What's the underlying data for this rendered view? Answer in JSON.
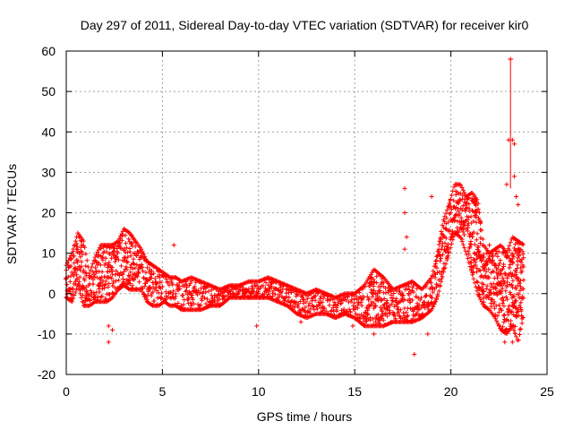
{
  "chart_data": {
    "type": "scatter",
    "title": "Day 297 of 2011, Sidereal Day-to-day VTEC variation (SDTVAR) for receiver kir0",
    "xlabel": "GPS time / hours",
    "ylabel": "SDTVAR / TECUs",
    "xlim": [
      0,
      25
    ],
    "ylim": [
      -20,
      60
    ],
    "xticks": [
      0,
      5,
      10,
      15,
      20,
      25
    ],
    "yticks": [
      -20,
      -10,
      0,
      10,
      20,
      30,
      40,
      50,
      60
    ],
    "grid": true,
    "marker": "+",
    "color": "#ff0000",
    "series": [
      {
        "name": "kir0",
        "bands": [
          {
            "x": [
              0.0,
              0.3,
              0.6,
              0.9,
              1.2,
              1.5,
              1.8,
              2.1,
              2.4,
              2.7,
              3.0,
              3.3,
              3.6,
              3.9,
              4.2,
              4.5,
              4.8,
              5.1,
              5.4,
              5.7,
              6.0,
              6.5,
              7.0,
              7.5,
              8.0,
              8.5,
              9.0,
              9.5,
              10.0,
              10.5,
              11.0,
              11.5,
              12.0,
              12.5,
              13.0,
              13.5,
              14.0,
              14.5,
              15.0,
              15.5,
              16.0,
              16.5,
              17.0,
              17.5,
              18.0,
              18.5,
              19.0,
              19.3,
              19.6,
              19.9,
              20.2,
              20.5,
              20.8,
              21.1,
              21.4,
              21.7,
              22.0,
              22.3,
              22.6,
              22.9,
              23.2,
              23.5,
              23.8
            ],
            "lo": [
              -1,
              -2,
              2,
              -3,
              -3,
              -2,
              -2,
              -2,
              -1,
              1,
              2,
              1,
              1,
              1,
              -2,
              -3,
              -3,
              -2,
              -3,
              -3,
              -4,
              -4,
              -4,
              -3,
              -3,
              -1,
              -1,
              -1,
              -1,
              -1,
              -2,
              -3,
              -5,
              -6,
              -5,
              -5,
              -6,
              -5,
              -6,
              -8,
              -8,
              -8,
              -7,
              -7,
              -7,
              -6,
              -4,
              -1,
              5,
              10,
              15,
              14,
              10,
              5,
              0,
              -3,
              -4,
              -6,
              -9,
              -10,
              -8,
              -12,
              -5
            ],
            "hi": [
              7,
              10,
              15,
              13,
              5,
              9,
              12,
              12,
              12,
              13,
              16,
              15,
              13,
              11,
              8,
              7,
              6,
              5,
              4,
              4,
              3,
              4,
              3,
              2,
              1,
              2,
              2,
              3,
              3,
              4,
              3,
              2,
              1,
              0,
              1,
              0,
              -1,
              0,
              0,
              2,
              6,
              4,
              1,
              2,
              3,
              1,
              4,
              10,
              18,
              22,
              27,
              27,
              24,
              25,
              23,
              12,
              10,
              11,
              12,
              10,
              14,
              13,
              12
            ]
          }
        ],
        "outliers": [
          {
            "x": 0.1,
            "y": 7
          },
          {
            "x": 2.2,
            "y": -8
          },
          {
            "x": 2.2,
            "y": -12
          },
          {
            "x": 2.4,
            "y": -9
          },
          {
            "x": 5.6,
            "y": 12
          },
          {
            "x": 9.9,
            "y": -8
          },
          {
            "x": 17.6,
            "y": 26
          },
          {
            "x": 17.6,
            "y": 20
          },
          {
            "x": 17.7,
            "y": 14
          },
          {
            "x": 17.6,
            "y": 11
          },
          {
            "x": 18.1,
            "y": -15
          },
          {
            "x": 18.8,
            "y": -10
          },
          {
            "x": 19.0,
            "y": 24
          },
          {
            "x": 22.9,
            "y": 27
          },
          {
            "x": 23.0,
            "y": 38
          },
          {
            "x": 23.1,
            "y": 58
          },
          {
            "x": 23.2,
            "y": 38
          },
          {
            "x": 23.3,
            "y": 37
          },
          {
            "x": 23.3,
            "y": 29
          },
          {
            "x": 23.4,
            "y": 24
          },
          {
            "x": 23.5,
            "y": 22
          },
          {
            "x": 22.8,
            "y": -12
          },
          {
            "x": 23.2,
            "y": -12
          },
          {
            "x": 21.7,
            "y": 4
          },
          {
            "x": 22.0,
            "y": 12
          },
          {
            "x": 16.0,
            "y": -10
          },
          {
            "x": 14.9,
            "y": -8
          },
          {
            "x": 12.2,
            "y": -7
          }
        ],
        "error_bar": {
          "x": 23.1,
          "y_low": 26,
          "y_high": 58
        }
      }
    ]
  }
}
